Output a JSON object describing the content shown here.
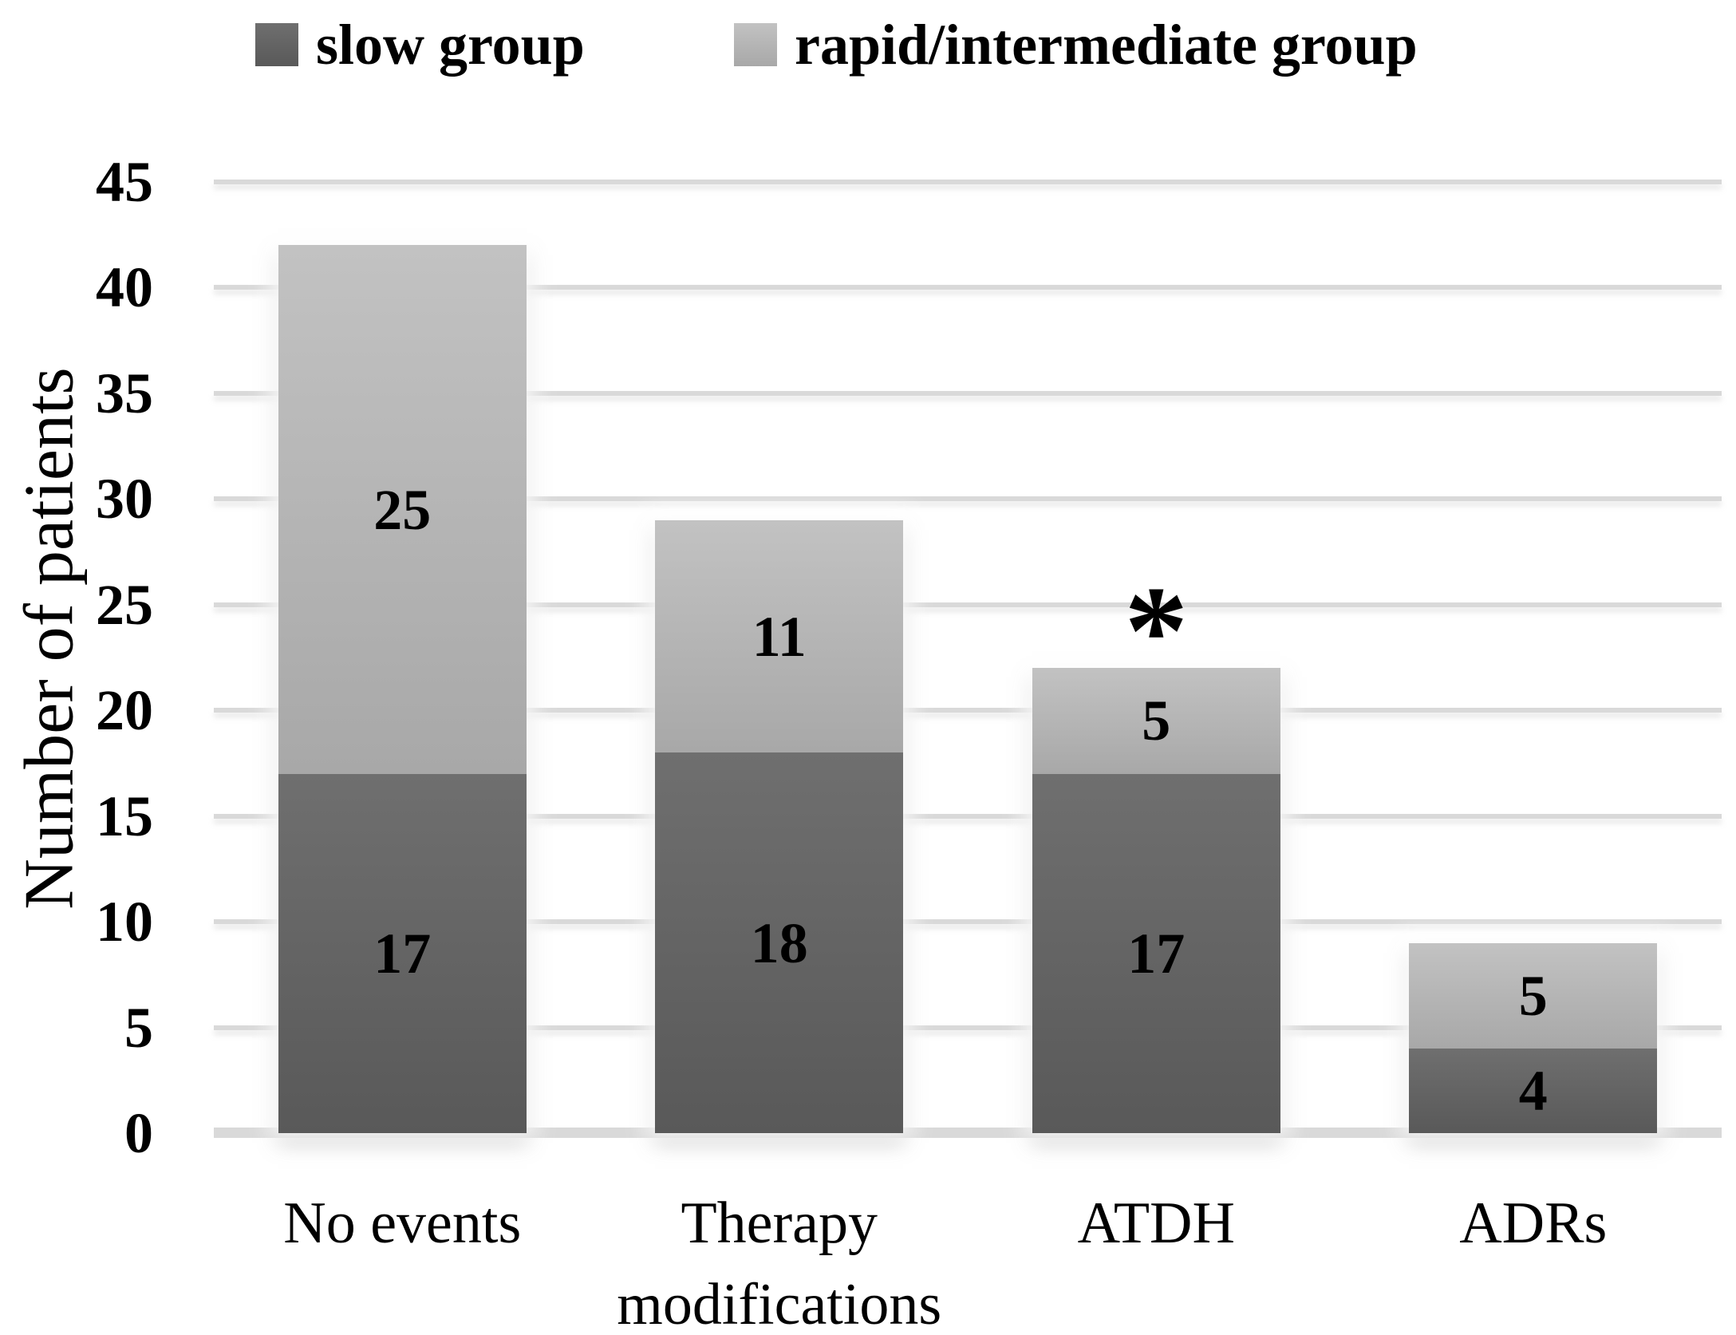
{
  "chart_data": {
    "type": "bar",
    "stacked": true,
    "orientation": "vertical",
    "categories": [
      "No events",
      "Therapy modifications",
      "ATDH",
      "ADRs"
    ],
    "series": [
      {
        "name": "slow group",
        "values": [
          17,
          18,
          17,
          4
        ],
        "fill_top": "#6f6f6f",
        "fill_bottom": "#595959"
      },
      {
        "name": "rapid/intermediate group",
        "values": [
          25,
          11,
          5,
          5
        ],
        "fill_top": "#c2c2c2",
        "fill_bottom": "#a8a8a8"
      }
    ],
    "title": "",
    "xlabel": "",
    "ylabel": "Number of patients",
    "ylim": [
      0,
      45
    ],
    "yticks": [
      0,
      5,
      10,
      15,
      20,
      25,
      30,
      35,
      40,
      45
    ],
    "grid": true,
    "gridline_color": "#d9d9d9",
    "axis_line_color": "#d9d9d9",
    "background": "#ffffff",
    "legend_position": "top",
    "annotations": [
      {
        "text": "*",
        "category": "ATDH"
      }
    ]
  }
}
